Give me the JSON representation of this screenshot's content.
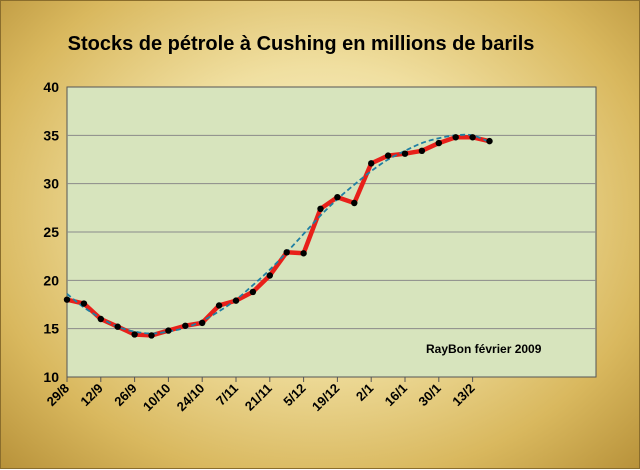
{
  "chart_data": {
    "type": "line",
    "title": "Stocks de pétrole à Cushing en millions de barils",
    "annotation": "RayBon février 2009",
    "xlabel": "",
    "ylabel": "",
    "ylim": [
      10,
      40
    ],
    "yticks": [
      10,
      15,
      20,
      25,
      30,
      35,
      40
    ],
    "x_tick_labels": [
      "29/8",
      "12/9",
      "26/9",
      "10/10",
      "24/10",
      "7/11",
      "21/11",
      "5/12",
      "19/12",
      "2/1",
      "16/1",
      "30/1",
      "13/2"
    ],
    "grid": true,
    "legend": "none",
    "series": [
      {
        "kind": "actual",
        "color": "#e8201a",
        "marker_color": "#000000",
        "values": [
          18.0,
          17.6,
          16.0,
          15.2,
          14.4,
          14.3,
          14.8,
          15.3,
          15.6,
          17.4,
          17.9,
          18.8,
          20.5,
          22.9,
          22.8,
          27.4,
          28.6,
          28.0,
          32.1,
          32.9,
          33.1,
          33.4,
          34.2,
          34.8,
          34.8,
          34.4
        ]
      },
      {
        "kind": "trend",
        "color": "#1f7fa3",
        "values": [
          18.6,
          17.2,
          16.1,
          15.2,
          14.7,
          14.5,
          14.7,
          15.1,
          15.8,
          16.8,
          18.0,
          19.5,
          21.1,
          22.9,
          24.8,
          26.7,
          28.4,
          29.9,
          31.3,
          32.5,
          33.4,
          34.2,
          34.7,
          35.0,
          35.0,
          34.3
        ]
      }
    ]
  }
}
